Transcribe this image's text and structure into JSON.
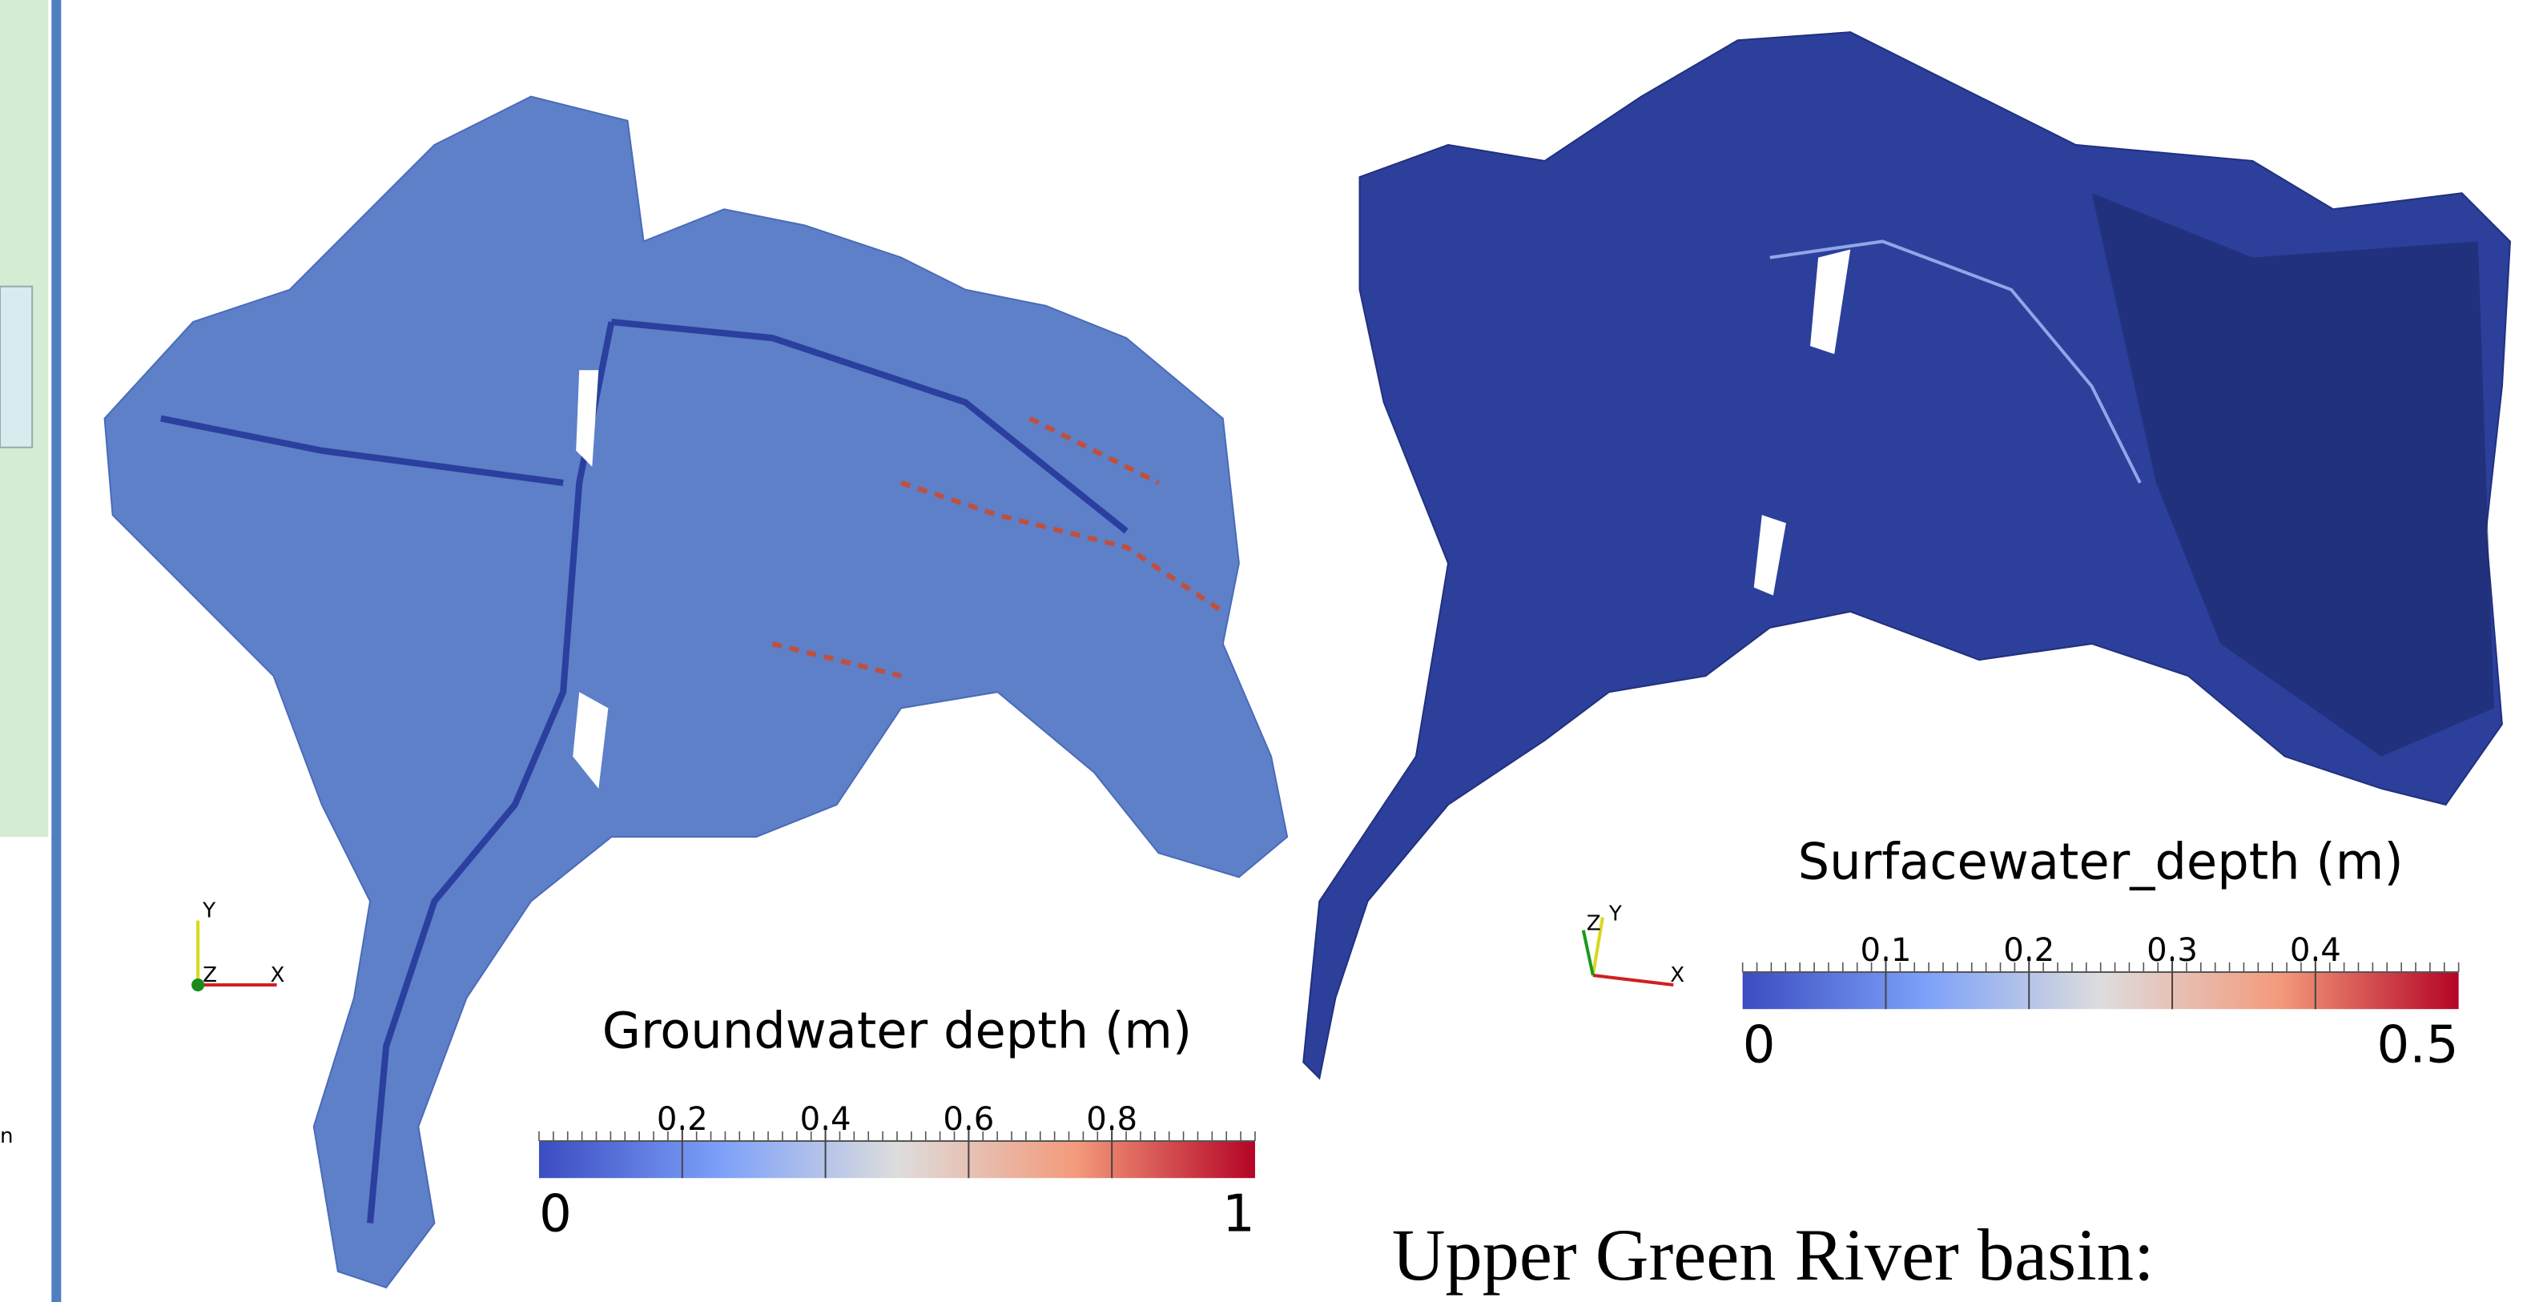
{
  "sidebar_fragment": "n",
  "left_map": {
    "colorbar": {
      "title": "Groundwater depth (m)",
      "range": [
        0,
        1
      ],
      "ticks": [
        0.2,
        0.4,
        0.6,
        0.8
      ]
    },
    "axes_triad": {
      "y": "Y",
      "z": "Z",
      "x": "X"
    }
  },
  "right_map": {
    "colorbar": {
      "title": "Surfacewater_depth (m)",
      "range": [
        0,
        0.5
      ],
      "ticks": [
        0.1,
        0.2,
        0.3,
        0.4
      ]
    },
    "axes_triad": {
      "z": "Z",
      "y": "Y",
      "x": "X"
    }
  },
  "caption": "Upper Green River basin:"
}
